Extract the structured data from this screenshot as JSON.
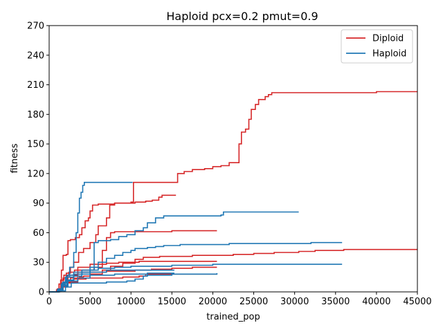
{
  "chart_data": {
    "type": "line",
    "title": "Haploid pcx=0.2 pmut=0.9",
    "xlabel": "trained_pop",
    "ylabel": "fitness",
    "xlim": [
      0,
      45000
    ],
    "ylim": [
      0,
      270
    ],
    "xticks": [
      0,
      5000,
      10000,
      15000,
      20000,
      25000,
      30000,
      35000,
      40000,
      45000
    ],
    "yticks": [
      0,
      30,
      60,
      90,
      120,
      150,
      180,
      210,
      240,
      270
    ],
    "grid": false,
    "legend": {
      "position": "upper right",
      "entries": [
        {
          "name": "Diploid",
          "color": "#d62728"
        },
        {
          "name": "Haploid",
          "color": "#1f77b4"
        }
      ]
    },
    "series": [
      {
        "name": "Diploid",
        "color": "#d62728",
        "runs": [
          [
            [
              0,
              0
            ],
            [
              900,
              2
            ],
            [
              1200,
              8
            ],
            [
              1500,
              22
            ],
            [
              1700,
              37
            ],
            [
              2100,
              38
            ],
            [
              2300,
              52
            ],
            [
              2600,
              53
            ],
            [
              3200,
              55
            ],
            [
              3700,
              58
            ],
            [
              4000,
              65
            ],
            [
              4400,
              72
            ],
            [
              4800,
              75
            ],
            [
              5000,
              82
            ],
            [
              5300,
              88
            ],
            [
              6000,
              89
            ],
            [
              7500,
              89
            ],
            [
              8000,
              90
            ],
            [
              9000,
              90
            ],
            [
              10500,
              91
            ],
            [
              11800,
              92
            ],
            [
              12600,
              93
            ],
            [
              13400,
              96
            ],
            [
              13800,
              98
            ],
            [
              15500,
              98
            ]
          ],
          [
            [
              0,
              0
            ],
            [
              1000,
              3
            ],
            [
              1400,
              12
            ],
            [
              1800,
              17
            ],
            [
              2100,
              19
            ],
            [
              2600,
              25
            ],
            [
              3000,
              30
            ],
            [
              3600,
              40
            ],
            [
              4200,
              44
            ],
            [
              5000,
              50
            ],
            [
              5700,
              58
            ],
            [
              6000,
              67
            ],
            [
              7000,
              75
            ],
            [
              7400,
              88
            ],
            [
              8000,
              90
            ],
            [
              9000,
              90
            ],
            [
              10000,
              91
            ],
            [
              10300,
              111
            ],
            [
              12000,
              111
            ],
            [
              15600,
              111
            ],
            [
              15700,
              120
            ],
            [
              16500,
              122
            ],
            [
              17500,
              124
            ],
            [
              19000,
              125
            ],
            [
              20000,
              127
            ],
            [
              21000,
              128
            ],
            [
              22000,
              131
            ],
            [
              23000,
              131
            ],
            [
              23200,
              150
            ],
            [
              23500,
              162
            ],
            [
              24000,
              165
            ],
            [
              24400,
              175
            ],
            [
              24700,
              185
            ],
            [
              25200,
              190
            ],
            [
              25600,
              195
            ],
            [
              26400,
              198
            ],
            [
              26800,
              200
            ],
            [
              27200,
              202
            ],
            [
              30000,
              202
            ],
            [
              40000,
              202
            ],
            [
              40000,
              203
            ],
            [
              45000,
              203
            ]
          ],
          [
            [
              0,
              0
            ],
            [
              1000,
              2
            ],
            [
              1400,
              7
            ],
            [
              1700,
              14
            ],
            [
              2100,
              17
            ],
            [
              2400,
              20
            ],
            [
              3100,
              22
            ],
            [
              4000,
              22
            ],
            [
              5500,
              25
            ],
            [
              6500,
              42
            ],
            [
              7000,
              55
            ],
            [
              7500,
              60
            ],
            [
              8000,
              61
            ],
            [
              10000,
              61
            ],
            [
              12000,
              61
            ],
            [
              15000,
              62
            ],
            [
              20500,
              62
            ]
          ],
          [
            [
              0,
              0
            ],
            [
              1100,
              3
            ],
            [
              1600,
              8
            ],
            [
              2000,
              12
            ],
            [
              2600,
              14
            ],
            [
              3700,
              15
            ],
            [
              4200,
              16
            ],
            [
              5000,
              18
            ],
            [
              6500,
              22
            ],
            [
              7500,
              26
            ],
            [
              9000,
              29
            ],
            [
              10500,
              33
            ],
            [
              11500,
              35
            ],
            [
              13500,
              36
            ],
            [
              15000,
              36
            ],
            [
              17500,
              37
            ],
            [
              20000,
              37
            ],
            [
              22500,
              38
            ],
            [
              25000,
              39
            ],
            [
              27500,
              40
            ],
            [
              30500,
              41
            ],
            [
              32500,
              42
            ],
            [
              36000,
              43
            ],
            [
              40000,
              43
            ],
            [
              45000,
              43
            ]
          ],
          [
            [
              0,
              0
            ],
            [
              1000,
              2
            ],
            [
              1500,
              8
            ],
            [
              2000,
              13
            ],
            [
              2300,
              17
            ],
            [
              3500,
              20
            ],
            [
              5000,
              20
            ],
            [
              7000,
              21
            ],
            [
              9000,
              21
            ],
            [
              10500,
              22
            ],
            [
              12500,
              23
            ],
            [
              15000,
              24
            ],
            [
              17500,
              25
            ],
            [
              20500,
              25
            ]
          ],
          [
            [
              0,
              0
            ],
            [
              1100,
              1
            ],
            [
              1500,
              5
            ],
            [
              2200,
              9
            ],
            [
              3000,
              13
            ],
            [
              4500,
              14
            ],
            [
              7000,
              14
            ],
            [
              9000,
              15
            ],
            [
              11000,
              16
            ],
            [
              11800,
              18
            ],
            [
              14000,
              18
            ],
            [
              20500,
              18
            ]
          ],
          [
            [
              0,
              0
            ],
            [
              1000,
              2
            ],
            [
              1500,
              6
            ],
            [
              2000,
              10
            ],
            [
              3500,
              25
            ],
            [
              5000,
              28
            ],
            [
              7000,
              29
            ],
            [
              8500,
              30
            ],
            [
              11000,
              31
            ],
            [
              13000,
              31
            ],
            [
              15000,
              31
            ],
            [
              20500,
              31
            ]
          ]
        ]
      },
      {
        "name": "Haploid",
        "color": "#1f77b4",
        "runs": [
          [
            [
              0,
              0
            ],
            [
              1000,
              2
            ],
            [
              1500,
              8
            ],
            [
              2000,
              15
            ],
            [
              2500,
              25
            ],
            [
              3000,
              40
            ],
            [
              3300,
              60
            ],
            [
              3500,
              80
            ],
            [
              3700,
              95
            ],
            [
              3900,
              101
            ],
            [
              4100,
              108
            ],
            [
              4300,
              111
            ],
            [
              8000,
              111
            ],
            [
              10200,
              111
            ]
          ],
          [
            [
              0,
              0
            ],
            [
              1200,
              3
            ],
            [
              1700,
              10
            ],
            [
              2200,
              17
            ],
            [
              3000,
              20
            ],
            [
              5000,
              22
            ],
            [
              5500,
              50
            ],
            [
              6000,
              52
            ],
            [
              7500,
              53
            ],
            [
              8500,
              56
            ],
            [
              9500,
              58
            ],
            [
              10500,
              62
            ],
            [
              11500,
              65
            ],
            [
              12000,
              70
            ],
            [
              13000,
              75
            ],
            [
              14000,
              77
            ],
            [
              20000,
              77
            ],
            [
              21000,
              78
            ],
            [
              21300,
              81
            ],
            [
              30500,
              81
            ]
          ],
          [
            [
              0,
              0
            ],
            [
              1200,
              2
            ],
            [
              1700,
              6
            ],
            [
              2200,
              12
            ],
            [
              3000,
              16
            ],
            [
              4000,
              20
            ],
            [
              5000,
              25
            ],
            [
              6000,
              30
            ],
            [
              7000,
              34
            ],
            [
              8000,
              37
            ],
            [
              9000,
              40
            ],
            [
              10000,
              42
            ],
            [
              10500,
              44
            ],
            [
              12000,
              45
            ],
            [
              13000,
              46
            ],
            [
              14000,
              47
            ],
            [
              16000,
              48
            ],
            [
              20000,
              48
            ],
            [
              22000,
              49
            ],
            [
              30000,
              49
            ],
            [
              32000,
              50
            ],
            [
              35800,
              50
            ]
          ],
          [
            [
              0,
              0
            ],
            [
              1300,
              1
            ],
            [
              2000,
              5
            ],
            [
              2700,
              9
            ],
            [
              4500,
              9
            ],
            [
              7000,
              10
            ],
            [
              9500,
              11
            ],
            [
              10500,
              13
            ],
            [
              11500,
              16
            ],
            [
              12000,
              17
            ],
            [
              15000,
              18
            ],
            [
              20500,
              19
            ]
          ],
          [
            [
              0,
              0
            ],
            [
              1200,
              2
            ],
            [
              1700,
              7
            ],
            [
              2200,
              12
            ],
            [
              3000,
              18
            ],
            [
              4000,
              22
            ],
            [
              6000,
              24
            ],
            [
              8000,
              25
            ],
            [
              10000,
              26
            ],
            [
              12500,
              26
            ],
            [
              15000,
              27
            ],
            [
              20000,
              28
            ],
            [
              22500,
              28
            ],
            [
              30000,
              28
            ],
            [
              35800,
              28
            ]
          ],
          [
            [
              0,
              0
            ],
            [
              1100,
              3
            ],
            [
              1600,
              9
            ],
            [
              2100,
              15
            ],
            [
              3000,
              18
            ],
            [
              5000,
              20
            ],
            [
              7000,
              22
            ],
            [
              9000,
              22
            ],
            [
              11000,
              22
            ],
            [
              15300,
              22
            ]
          ],
          [
            [
              0,
              0
            ],
            [
              1200,
              2
            ],
            [
              1700,
              6
            ],
            [
              2300,
              11
            ],
            [
              3500,
              14
            ],
            [
              5000,
              17
            ],
            [
              8000,
              18
            ],
            [
              12000,
              19
            ],
            [
              15300,
              19
            ]
          ]
        ]
      }
    ]
  }
}
